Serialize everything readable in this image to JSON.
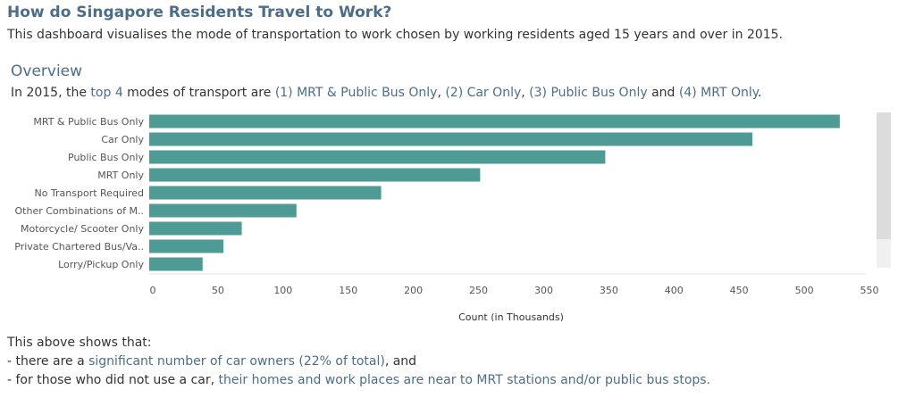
{
  "header": {
    "title": "How do Singapore Residents Travel to Work?",
    "subtitle": "This dashboard visualises the mode of transportation to work chosen by working residents aged 15 years and over in 2015."
  },
  "overview": {
    "heading": "Overview",
    "intro": "In 2015, the ",
    "highlight": "top 4",
    "mid": " modes of transport are ",
    "item1": "(1) MRT & Public Bus Only",
    "sep1": ", ",
    "item2": "(2) Car Only",
    "sep2": ", ",
    "item3": "(3) Public Bus Only",
    "and": " and ",
    "item4": "(4) MRT Only",
    "end": "."
  },
  "notes": {
    "line1": "This above shows that:",
    "line2_pre": "- there are a ",
    "line2_hl": "significant number of car owners (22% of total)",
    "line2_post": ", and",
    "line3_pre": "- for those who did not use a car, ",
    "line3_hl": "their homes and work places are near to MRT stations and/or public bus stops."
  },
  "colors": {
    "bar": "#4e9a94",
    "highlight_text": "#4a6d8c",
    "axis_text": "#555555"
  },
  "chart_data": {
    "type": "bar",
    "orientation": "horizontal",
    "categories": [
      "MRT & Public Bus Only",
      "Car Only",
      "Public Bus Only",
      "MRT Only",
      "No Transport Required",
      "Other Combinations of M..",
      "Motorcycle/ Scooter Only",
      "Private Chartered Bus/Va..",
      "Lorry/Pickup Only"
    ],
    "values": [
      530,
      463,
      350,
      254,
      178,
      113,
      71,
      57,
      41
    ],
    "xlabel": "Count (in Thousands)",
    "ylabel": "",
    "xlim": [
      0,
      550
    ],
    "xticks": [
      0,
      50,
      100,
      150,
      200,
      250,
      300,
      350,
      400,
      450,
      500,
      550
    ],
    "grid": false
  }
}
